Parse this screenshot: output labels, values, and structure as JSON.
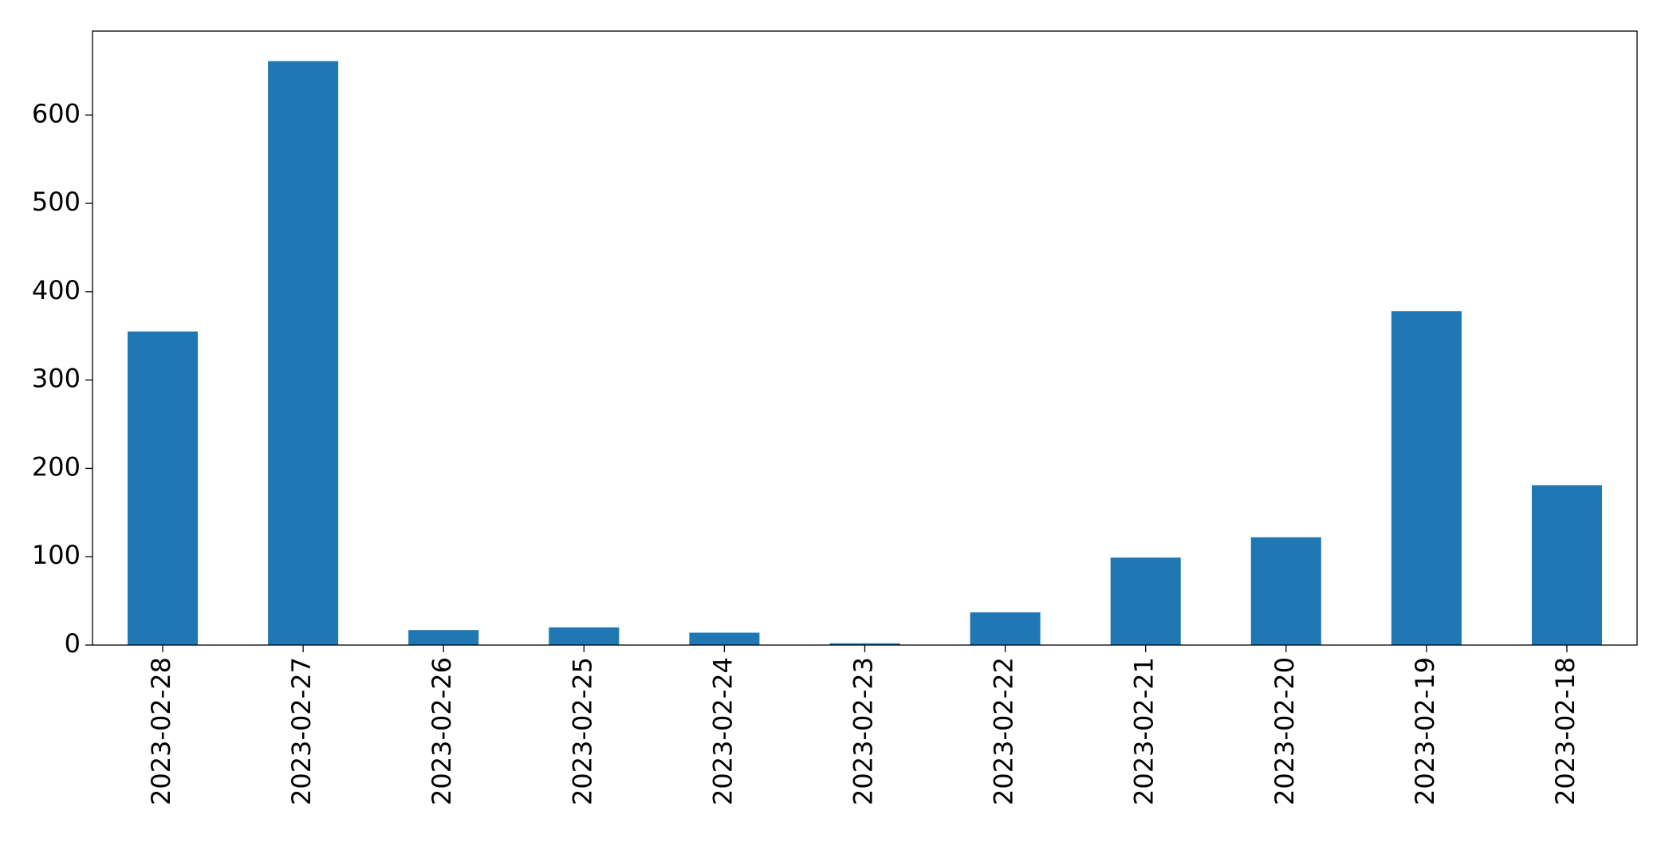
{
  "chart_data": {
    "type": "bar",
    "categories": [
      "2023-02-28",
      "2023-02-27",
      "2023-02-26",
      "2023-02-25",
      "2023-02-24",
      "2023-02-23",
      "2023-02-22",
      "2023-02-21",
      "2023-02-20",
      "2023-02-19",
      "2023-02-18"
    ],
    "values": [
      355,
      661,
      17,
      20,
      14,
      2,
      37,
      99,
      122,
      378,
      181
    ],
    "color": "#1f77b4",
    "ylim": [
      0,
      695
    ],
    "yticks": [
      0,
      100,
      200,
      300,
      400,
      500,
      600
    ],
    "grid": false
  }
}
